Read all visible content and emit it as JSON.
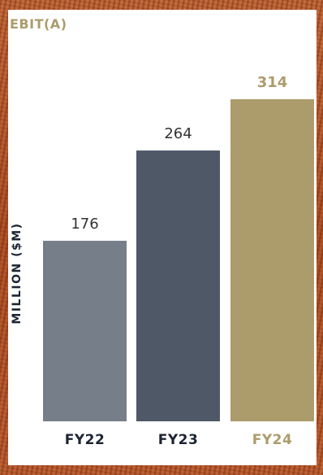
{
  "chart_data": {
    "type": "bar",
    "title": "EBIT(A)",
    "ylabel": "MILLION ($M)",
    "xlabel": "",
    "categories": [
      "FY22",
      "FY23",
      "FY24"
    ],
    "values": [
      176,
      264,
      314
    ],
    "value_labels": [
      "176",
      "264",
      "314"
    ],
    "ylim": [
      0,
      314
    ],
    "grid": false,
    "bar_colors": [
      "#767e8a",
      "#4f5867",
      "#ac9c6c"
    ],
    "value_label_colors": [
      "#333333",
      "#333333",
      "#ac9c6c"
    ],
    "category_label_colors": [
      "#1d2433",
      "#1d2433",
      "#ac9c6c"
    ],
    "title_color": "#ac9c6c"
  }
}
